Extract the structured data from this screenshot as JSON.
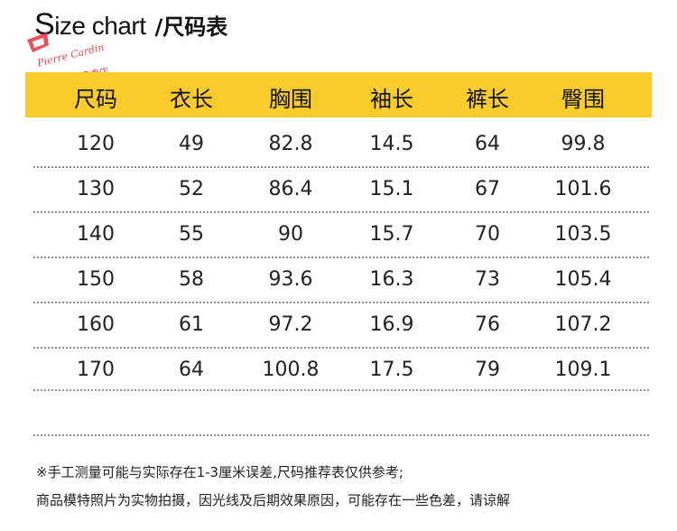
{
  "title": {
    "english": "Size chart",
    "separator_chinese": "/尺码表"
  },
  "logo": {
    "brand_script": "Pierre Cardin",
    "store_name": "皮尔卡丹优源专卖店",
    "accent_color": "#e8323c"
  },
  "table": {
    "header_bg": "#f9cc2b",
    "columns": [
      "尺码",
      "衣长",
      "胸围",
      "袖长",
      "裤长",
      "臀围"
    ],
    "rows": [
      [
        "120",
        "49",
        "82.8",
        "14.5",
        "64",
        "99.8"
      ],
      [
        "130",
        "52",
        "86.4",
        "15.1",
        "67",
        "101.6"
      ],
      [
        "140",
        "55",
        "90",
        "15.7",
        "70",
        "103.5"
      ],
      [
        "150",
        "58",
        "93.6",
        "16.3",
        "73",
        "105.4"
      ],
      [
        "160",
        "61",
        "97.2",
        "16.9",
        "76",
        "107.2"
      ],
      [
        "170",
        "64",
        "100.8",
        "17.5",
        "79",
        "109.1"
      ]
    ]
  },
  "notes": [
    "※手工测量可能与实际存在1-3厘米误差,尺码推荐表仅供参考;",
    "商品模特照片为实物拍摄，因光线及后期效果原因，可能存在一些色差，请谅解"
  ]
}
